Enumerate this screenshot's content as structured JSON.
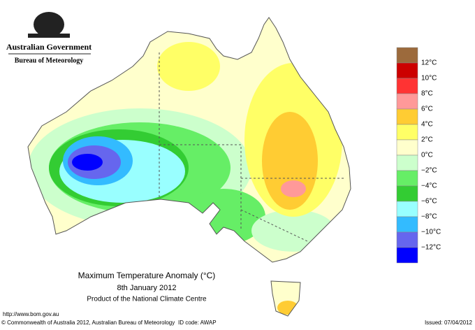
{
  "header": {
    "government": "Australian Government",
    "bureau": "Bureau of Meteorology"
  },
  "legend": {
    "labels": [
      "12°C",
      "10°C",
      "8°C",
      "6°C",
      "4°C",
      "2°C",
      "0°C",
      "−2°C",
      "−4°C",
      "−6°C",
      "−8°C",
      "−10°C",
      "−12°C"
    ],
    "colors": [
      "#9c6a3c",
      "#cc0000",
      "#ff3333",
      "#ff9999",
      "#ffcc33",
      "#ffff66",
      "#ffffcc",
      "#ccffcc",
      "#66ee66",
      "#33cc33",
      "#99ffff",
      "#33bbff",
      "#6666ee",
      "#0000ff"
    ]
  },
  "caption": {
    "title": "Maximum Temperature Anomaly (°C)",
    "date": "8th January 2012",
    "product": "Product of the National Climate Centre"
  },
  "footer": {
    "url": "http://www.bom.gov.au",
    "copyright": "© Commonwealth of Australia 2012, Australian Bureau of Meteorology",
    "id_code": "ID code: AWAP",
    "issued": "Issued: 07/04/2012"
  }
}
